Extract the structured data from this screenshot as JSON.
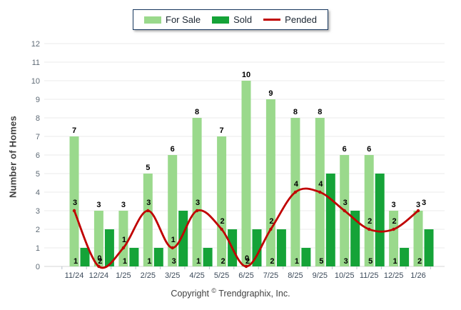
{
  "legend": {
    "for_sale_label": "For Sale",
    "sold_label": "Sold",
    "pended_label": "Pended"
  },
  "y_axis_title": "Number of Homes",
  "footer": {
    "pre": "Copyright ",
    "symbol": "©",
    "post": " Trendgraphix, Inc."
  },
  "colors": {
    "for_sale": "#9ad98c",
    "sold": "#15a338",
    "pended": "#c00000",
    "grid": "#ebebeb",
    "baseline": "#d4d4d4",
    "tick_mark": "#b9c2cc",
    "legend_border": "#17375E"
  },
  "chart_data": {
    "type": "bar",
    "title": "",
    "xlabel": "",
    "ylabel": "Number of Homes",
    "ylim": [
      0,
      12
    ],
    "y_ticks": [
      0,
      1,
      2,
      3,
      4,
      5,
      6,
      7,
      8,
      9,
      10,
      11,
      12
    ],
    "grid": true,
    "legend_position": "top-center",
    "categories": [
      "11/24",
      "12/24",
      "1/25",
      "2/25",
      "3/25",
      "4/25",
      "5/25",
      "6/25",
      "7/25",
      "8/25",
      "9/25",
      "10/25",
      "11/25",
      "12/25",
      "1/26"
    ],
    "series": [
      {
        "name": "For Sale",
        "type": "bar",
        "values": [
          7,
          3,
          3,
          5,
          6,
          8,
          7,
          10,
          9,
          8,
          8,
          6,
          6,
          3,
          3
        ]
      },
      {
        "name": "Sold",
        "type": "bar",
        "values": [
          1,
          2,
          1,
          1,
          3,
          1,
          2,
          2,
          2,
          1,
          5,
          3,
          5,
          1,
          2
        ]
      },
      {
        "name": "Pended",
        "type": "line",
        "values": [
          3,
          0,
          1,
          3,
          1,
          3,
          2,
          0,
          2,
          4,
          4,
          3,
          2,
          2,
          3
        ]
      }
    ]
  }
}
